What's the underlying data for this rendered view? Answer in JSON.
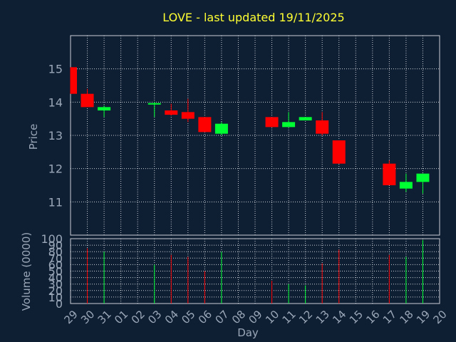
{
  "title": "LOVE - last updated 19/11/2025",
  "colors": {
    "background": "#0f1f33",
    "up": "#00ff33",
    "down": "#ff0000",
    "title": "#ffff33",
    "text": "#9aa7b8"
  },
  "chart_data": [
    {
      "type": "candlestick",
      "ylabel": "Price",
      "ylim": [
        10.0,
        16.0
      ],
      "yticks": [
        11,
        12,
        13,
        14,
        15
      ],
      "categories": [
        "29",
        "30",
        "31",
        "01",
        "02",
        "03",
        "04",
        "05",
        "06",
        "07",
        "08",
        "09",
        "10",
        "11",
        "12",
        "13",
        "14",
        "15",
        "16",
        "17",
        "18",
        "19",
        "20"
      ],
      "grid": true,
      "candles": [
        {
          "x": "29",
          "open": 15.05,
          "high": 15.05,
          "low": 14.25,
          "close": 14.25
        },
        {
          "x": "30",
          "open": 14.25,
          "high": 14.4,
          "low": 13.85,
          "close": 13.85
        },
        {
          "x": "31",
          "open": 13.75,
          "high": 13.9,
          "low": 13.55,
          "close": 13.85
        },
        {
          "x": "03",
          "open": 13.95,
          "high": 14.0,
          "low": 13.55,
          "close": 13.97
        },
        {
          "x": "04",
          "open": 13.75,
          "high": 13.95,
          "low": 13.6,
          "close": 13.62
        },
        {
          "x": "05",
          "open": 13.7,
          "high": 14.1,
          "low": 13.4,
          "close": 13.5
        },
        {
          "x": "06",
          "open": 13.55,
          "high": 13.55,
          "low": 13.1,
          "close": 13.1
        },
        {
          "x": "07",
          "open": 13.05,
          "high": 13.4,
          "low": 13.0,
          "close": 13.35
        },
        {
          "x": "10",
          "open": 13.55,
          "high": 13.55,
          "low": 13.25,
          "close": 13.25
        },
        {
          "x": "11",
          "open": 13.25,
          "high": 13.7,
          "low": 13.25,
          "close": 13.4
        },
        {
          "x": "12",
          "open": 13.45,
          "high": 13.55,
          "low": 13.45,
          "close": 13.55
        },
        {
          "x": "13",
          "open": 13.45,
          "high": 13.7,
          "low": 13.0,
          "close": 13.05
        },
        {
          "x": "14",
          "open": 12.85,
          "high": 12.85,
          "low": 12.15,
          "close": 12.15
        },
        {
          "x": "17",
          "open": 12.15,
          "high": 12.25,
          "low": 11.5,
          "close": 11.5
        },
        {
          "x": "18",
          "open": 11.4,
          "high": 11.85,
          "low": 11.3,
          "close": 11.6
        },
        {
          "x": "19",
          "open": 11.6,
          "high": 11.85,
          "low": 11.25,
          "close": 11.85
        }
      ]
    },
    {
      "type": "bar",
      "ylabel": "Volume (0000)",
      "xlabel": "Day",
      "ylim": [
        0,
        100
      ],
      "yticks": [
        0,
        10,
        20,
        30,
        40,
        50,
        60,
        70,
        80,
        90,
        100
      ],
      "categories": [
        "29",
        "30",
        "31",
        "01",
        "02",
        "03",
        "04",
        "05",
        "06",
        "07",
        "08",
        "09",
        "10",
        "11",
        "12",
        "13",
        "14",
        "15",
        "16",
        "17",
        "18",
        "19",
        "20"
      ],
      "bars": [
        {
          "x": "30",
          "value": 85,
          "direction": "down"
        },
        {
          "x": "31",
          "value": 80,
          "direction": "up"
        },
        {
          "x": "03",
          "value": 60,
          "direction": "up"
        },
        {
          "x": "04",
          "value": 75,
          "direction": "down"
        },
        {
          "x": "05",
          "value": 72,
          "direction": "down"
        },
        {
          "x": "06",
          "value": 50,
          "direction": "down"
        },
        {
          "x": "07",
          "value": 80,
          "direction": "up"
        },
        {
          "x": "10",
          "value": 35,
          "direction": "down"
        },
        {
          "x": "11",
          "value": 30,
          "direction": "up"
        },
        {
          "x": "12",
          "value": 28,
          "direction": "up"
        },
        {
          "x": "13",
          "value": 62,
          "direction": "down"
        },
        {
          "x": "14",
          "value": 83,
          "direction": "down"
        },
        {
          "x": "17",
          "value": 75,
          "direction": "down"
        },
        {
          "x": "18",
          "value": 72,
          "direction": "up"
        },
        {
          "x": "19",
          "value": 98,
          "direction": "up"
        }
      ]
    }
  ]
}
